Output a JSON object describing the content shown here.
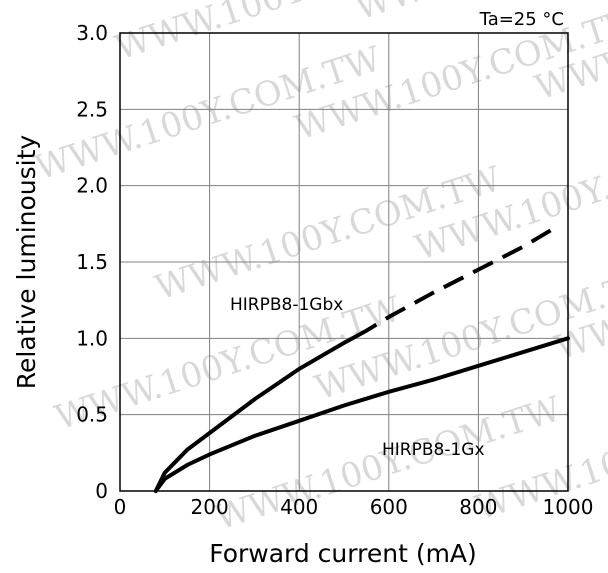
{
  "chart_data": {
    "type": "line",
    "xlabel": "Forward current (mA)",
    "ylabel": "Relative luminousity",
    "xlim": [
      0,
      1000
    ],
    "ylim": [
      0,
      3.0
    ],
    "x_ticks": [
      "0",
      "200",
      "400",
      "600",
      "800",
      "1000"
    ],
    "y_ticks": [
      "0",
      "0.5",
      "1.0",
      "1.5",
      "2.0",
      "2.5",
      "3.0"
    ],
    "grid": true,
    "annotation": "Ta=25 °C",
    "watermark": "WWW.100Y.COM.TW",
    "series": [
      {
        "name": "HIRPB8-1Gbx",
        "x": [
          80,
          100,
          150,
          200,
          300,
          400,
          500,
          550,
          600,
          700,
          800,
          900,
          980
        ],
        "y": [
          0,
          0.12,
          0.27,
          0.38,
          0.6,
          0.8,
          0.97,
          1.05,
          1.14,
          1.3,
          1.45,
          1.6,
          1.74
        ],
        "dashed_from_x": 530
      },
      {
        "name": "HIRPB8-1Gx",
        "x": [
          80,
          100,
          150,
          200,
          300,
          400,
          500,
          600,
          700,
          800,
          900,
          1000
        ],
        "y": [
          0,
          0.08,
          0.17,
          0.24,
          0.36,
          0.46,
          0.56,
          0.65,
          0.73,
          0.82,
          0.91,
          1.0
        ]
      }
    ]
  }
}
